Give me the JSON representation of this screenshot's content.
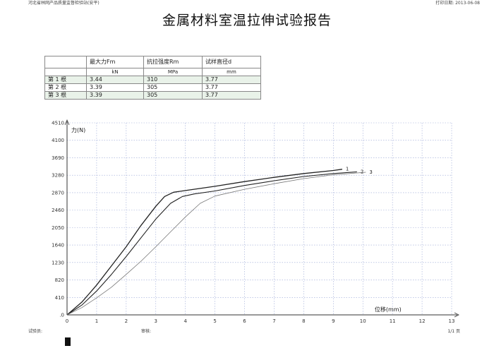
{
  "header": {
    "left_text": "河北省林网产品质量监督检验站(安平)",
    "right_text": "打印日期: 2013-06-08"
  },
  "title": "金属材料室温拉伸试验报告",
  "table": {
    "headers": [
      "最大力Fm",
      "抗拉强度Rm",
      "试样直径d"
    ],
    "units": [
      "kN",
      "MPa",
      "mm"
    ],
    "rows": [
      {
        "label": "第 1 根",
        "values": [
          "3.44",
          "310",
          "3.77"
        ]
      },
      {
        "label": "第 2 根",
        "values": [
          "3.39",
          "305",
          "3.77"
        ]
      },
      {
        "label": "第 3 根",
        "values": [
          "3.39",
          "305",
          "3.77"
        ]
      }
    ]
  },
  "chart_data": {
    "type": "line",
    "ylabel": "力(N)",
    "xlabel": "位移(mm)",
    "xlim": [
      0,
      13
    ],
    "ylim": [
      0,
      4510
    ],
    "x_ticks": [
      0,
      1,
      2,
      3,
      4,
      5,
      6,
      7,
      8,
      9,
      10,
      11,
      12,
      13
    ],
    "y_ticks": [
      0,
      410,
      820,
      1230,
      1640,
      2050,
      2460,
      2870,
      3280,
      3690,
      4100,
      4510
    ],
    "y_tick_labels": [
      ".0",
      "410",
      "820",
      "1230",
      "1640",
      "2050",
      "2460",
      "2870",
      "3280",
      "3690",
      "4100",
      "4510"
    ],
    "grid": true,
    "series": [
      {
        "name": "1",
        "x": [
          0,
          0.5,
          1,
          1.5,
          2,
          2.5,
          3,
          3.3,
          3.6,
          4.0,
          5,
          6,
          7,
          8,
          9,
          9.3
        ],
        "y": [
          0,
          300,
          700,
          1150,
          1600,
          2100,
          2550,
          2780,
          2880,
          2920,
          3020,
          3130,
          3230,
          3320,
          3390,
          3420
        ]
      },
      {
        "name": "2",
        "x": [
          0,
          0.5,
          1,
          1.5,
          2,
          2.5,
          3,
          3.5,
          3.9,
          4.3,
          5,
          6,
          7,
          8,
          9,
          9.8
        ],
        "y": [
          0,
          230,
          560,
          950,
          1370,
          1810,
          2250,
          2620,
          2780,
          2840,
          2910,
          3040,
          3150,
          3250,
          3320,
          3360
        ]
      },
      {
        "name": "3",
        "x": [
          0,
          0.5,
          1,
          1.5,
          2,
          2.5,
          3,
          3.5,
          4,
          4.5,
          5,
          6,
          7,
          8,
          9,
          10.1
        ],
        "y": [
          0,
          170,
          400,
          650,
          950,
          1260,
          1600,
          1950,
          2300,
          2620,
          2790,
          2950,
          3080,
          3200,
          3290,
          3350
        ]
      }
    ]
  },
  "footer": {
    "tester": "试验员:",
    "reviewer": "审核:",
    "page": "1/1 页"
  }
}
